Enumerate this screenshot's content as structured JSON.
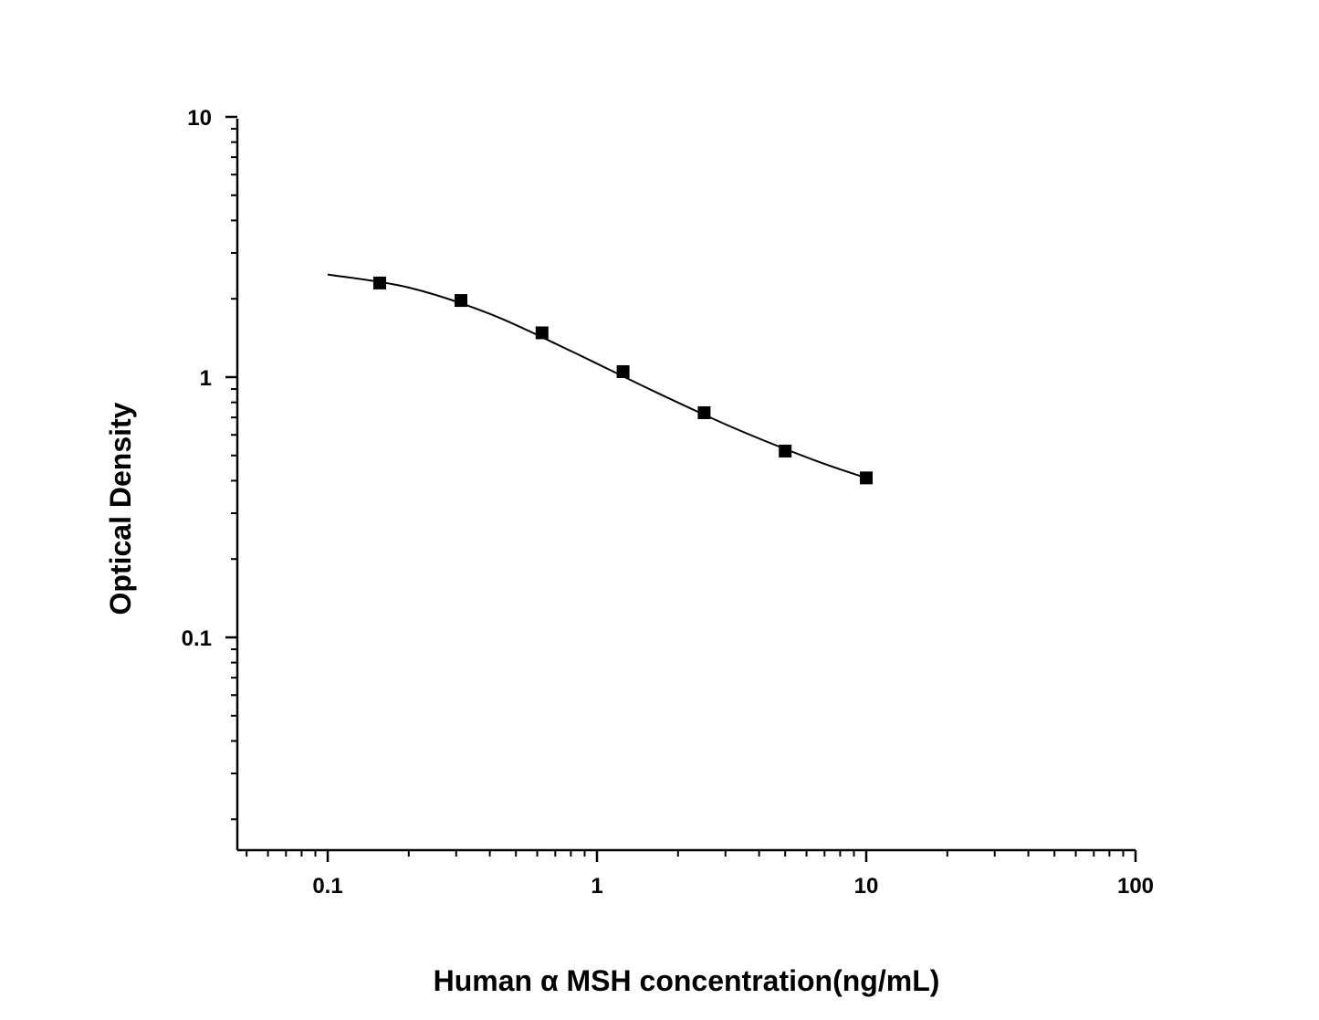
{
  "chart_data": {
    "type": "scatter",
    "title": "",
    "xlabel": "Human α MSH concentration(ng/mL)",
    "ylabel": "Optical Density",
    "x_scale": "log",
    "y_scale": "log",
    "xlim": [
      0.05,
      100
    ],
    "ylim": [
      0.016,
      10
    ],
    "x_ticks": [
      {
        "value": 0.1,
        "label": "0.1"
      },
      {
        "value": 1,
        "label": "1"
      },
      {
        "value": 10,
        "label": "10"
      },
      {
        "value": 100,
        "label": "100"
      }
    ],
    "y_ticks": [
      {
        "value": 0.1,
        "label": "0.1"
      },
      {
        "value": 1,
        "label": "1"
      },
      {
        "value": 10,
        "label": "10"
      }
    ],
    "grid": false,
    "legend": "none",
    "series": [
      {
        "marker": "square",
        "color": "#000000",
        "x": [
          0.156,
          0.3125,
          0.625,
          1.25,
          2.5,
          5,
          10
        ],
        "y": [
          2.3,
          1.97,
          1.48,
          1.05,
          0.73,
          0.52,
          0.41
        ]
      }
    ],
    "fit_curve": {
      "color": "#000000",
      "x": [
        0.1,
        0.2,
        0.4,
        0.8,
        1.6,
        3.2,
        6.4,
        10
      ],
      "y": [
        2.48,
        2.21,
        1.75,
        1.26,
        0.89,
        0.64,
        0.48,
        0.41
      ]
    }
  }
}
